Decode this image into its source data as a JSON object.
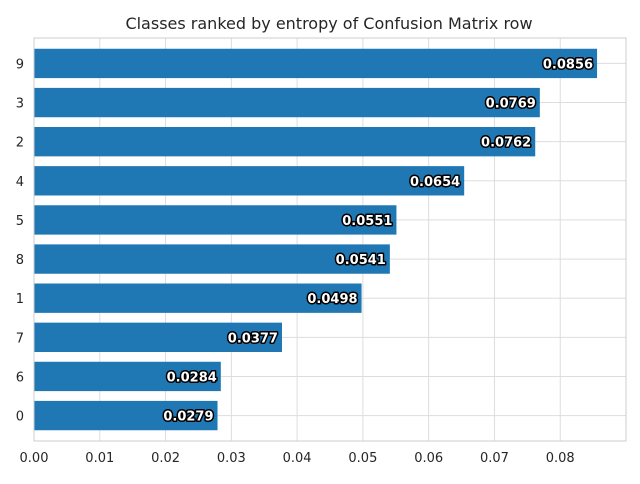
{
  "chart_data": {
    "type": "bar",
    "orientation": "horizontal",
    "title": "Classes ranked by entropy of Confusion Matrix row",
    "xlabel": "",
    "ylabel": "",
    "categories": [
      "9",
      "3",
      "2",
      "4",
      "5",
      "8",
      "1",
      "7",
      "6",
      "0"
    ],
    "values": [
      0.0856,
      0.0769,
      0.0762,
      0.0654,
      0.0551,
      0.0541,
      0.0498,
      0.0377,
      0.0284,
      0.0279
    ],
    "data_labels": [
      "0.0856",
      "0.0769",
      "0.0762",
      "0.0654",
      "0.0551",
      "0.0541",
      "0.0498",
      "0.0377",
      "0.0284",
      "0.0279"
    ],
    "xlim": [
      0,
      0.09
    ],
    "xticks": [
      0.0,
      0.01,
      0.02,
      0.03,
      0.04,
      0.05,
      0.06,
      0.07,
      0.08
    ],
    "xtick_labels": [
      "0.00",
      "0.01",
      "0.02",
      "0.03",
      "0.04",
      "0.05",
      "0.06",
      "0.07",
      "0.08"
    ],
    "grid": true,
    "legend": "none",
    "bar_color": "#1f77b4",
    "grid_color": "#dddddd",
    "spine_color": "#cccccc"
  }
}
